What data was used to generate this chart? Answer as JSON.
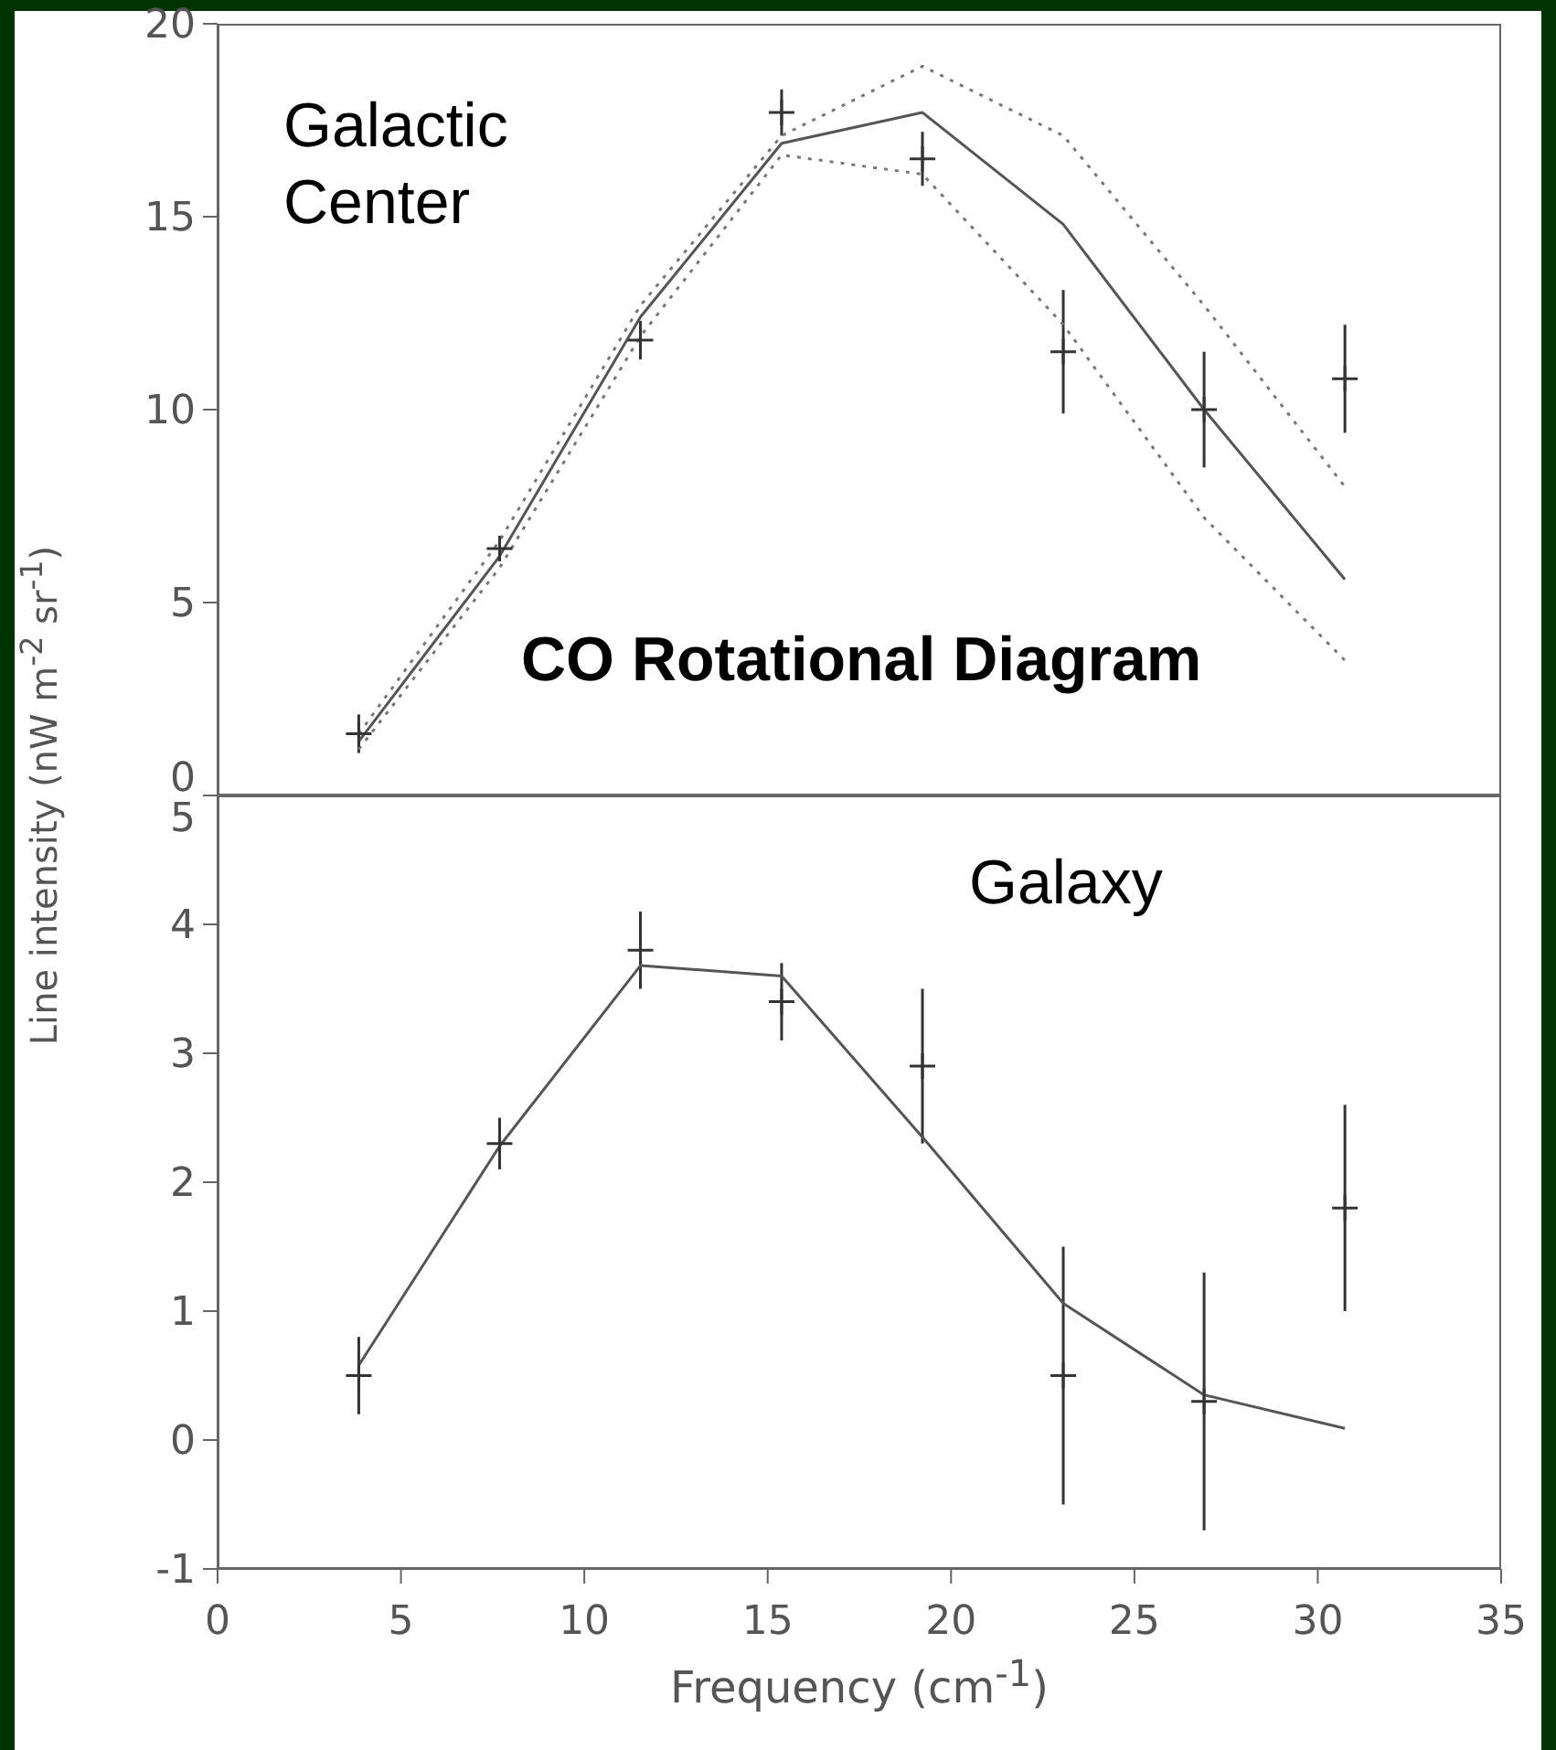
{
  "chart_data": [
    {
      "type": "scatter",
      "title": "CO Rotational Diagram",
      "ylabel": "Line intensity (nW m$^{-2}$ sr$^{-1}$)",
      "annotations": [
        "Galactic Center"
      ],
      "x": [
        3.85,
        7.69,
        11.53,
        15.38,
        19.22,
        23.06,
        26.9,
        30.74
      ],
      "xlim": [
        0,
        35
      ],
      "xticks": [
        0,
        5,
        10,
        15,
        20,
        25,
        30,
        35
      ],
      "ylim": [
        0,
        20
      ],
      "yticks": [
        0,
        5,
        10,
        15,
        20
      ],
      "tick_labels": "y",
      "series": [
        {
          "type": "scatter",
          "color": "#333333",
          "marker": "cross",
          "values": [
            1.6,
            6.4,
            11.8,
            17.7,
            16.5,
            11.5,
            10.0,
            10.8
          ],
          "errors": [
            0.5,
            0.3,
            0.5,
            0.6,
            0.7,
            1.6,
            1.5,
            1.4
          ]
        },
        {
          "type": "line",
          "color": "#555555",
          "line_style": "solid",
          "values": [
            1.4,
            6.2,
            12.4,
            16.9,
            17.7,
            14.8,
            10.0,
            5.6
          ]
        },
        {
          "type": "line",
          "color": "#777777",
          "line_style": "dotted",
          "values": [
            1.6,
            6.6,
            12.7,
            17.1,
            18.9,
            17.1,
            12.7,
            8.0
          ]
        },
        {
          "type": "line",
          "color": "#777777",
          "line_style": "dotted",
          "values": [
            1.2,
            5.9,
            11.9,
            16.6,
            16.1,
            12.2,
            7.2,
            3.5
          ]
        }
      ]
    },
    {
      "type": "scatter",
      "xlabel": "Frequency (cm$^{-1}$)",
      "annotations": [
        "Galaxy"
      ],
      "x": [
        3.85,
        7.69,
        11.53,
        15.38,
        19.22,
        23.06,
        26.9,
        30.74
      ],
      "xlim": [
        0,
        35
      ],
      "xticks": [
        0,
        5,
        10,
        15,
        20,
        25,
        30,
        35
      ],
      "ylim": [
        -1,
        5
      ],
      "yticks": [
        -1,
        0,
        1,
        2,
        3,
        4,
        5
      ],
      "series": [
        {
          "type": "scatter",
          "color": "#333333",
          "marker": "cross",
          "values": [
            0.5,
            2.3,
            3.8,
            3.4,
            2.9,
            0.5,
            0.3,
            1.8
          ],
          "errors": [
            0.3,
            0.2,
            0.3,
            0.3,
            0.6,
            1.0,
            1.0,
            0.8
          ]
        },
        {
          "type": "line",
          "color": "#555555",
          "line_style": "solid",
          "values": [
            0.58,
            2.28,
            3.68,
            3.6,
            2.35,
            1.06,
            0.35,
            0.09
          ]
        }
      ]
    }
  ]
}
